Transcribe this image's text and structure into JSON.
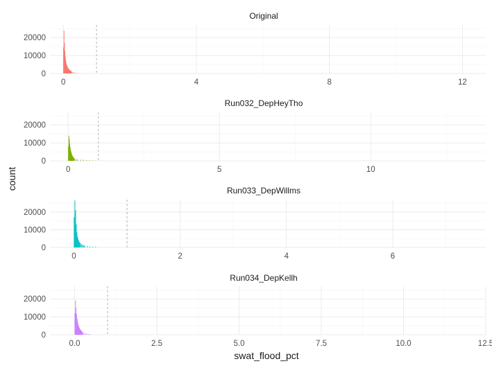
{
  "chart_data": {
    "type": "bar",
    "xlabel": "swat_flood_pct",
    "ylabel": "count",
    "grid": true,
    "legend": "none",
    "facets": [
      {
        "title": "Original",
        "color": "#F8766D",
        "xlim": [
          -0.4,
          12.7
        ],
        "x_major": [
          0,
          4,
          8,
          12
        ],
        "x_major_labels": [
          "0",
          "4",
          "8",
          "12"
        ],
        "x_minor": [
          2,
          6,
          10
        ],
        "ylim": [
          0,
          27000
        ],
        "y_ticks": [
          0,
          10000,
          20000
        ],
        "y_tick_labels": [
          "0",
          "10000",
          "20000"
        ],
        "vline": 1,
        "bins": {
          "x": [
            0.0,
            0.013,
            0.026,
            0.039,
            0.052,
            0.065,
            0.078,
            0.091,
            0.104,
            0.117,
            0.13,
            0.143,
            0.156,
            0.169,
            0.182,
            0.195,
            0.208,
            0.221,
            0.234,
            0.26,
            0.3,
            0.35,
            0.4,
            0.45
          ],
          "counts": [
            14500,
            23800,
            17000,
            12500,
            9500,
            7500,
            6000,
            5000,
            4300,
            3700,
            3200,
            2800,
            2500,
            2200,
            2000,
            1800,
            1600,
            1400,
            1200,
            900,
            700,
            500,
            300,
            150
          ],
          "width": 0.013
        }
      },
      {
        "title": "Run032_DepHeyTho",
        "color": "#7CAE00",
        "xlim": [
          -0.6,
          13.8
        ],
        "x_major": [
          0,
          5,
          10
        ],
        "x_major_labels": [
          "0",
          "5",
          "10"
        ],
        "x_minor": [
          2.5,
          7.5,
          12.5
        ],
        "ylim": [
          0,
          27000
        ],
        "y_ticks": [
          0,
          10000,
          20000
        ],
        "y_tick_labels": [
          "0",
          "10000",
          "20000"
        ],
        "vline": 1,
        "bins": {
          "x": [
            0.0,
            0.015,
            0.03,
            0.045,
            0.06,
            0.075,
            0.09,
            0.105,
            0.12,
            0.135,
            0.15,
            0.165,
            0.18,
            0.2,
            0.25,
            0.3,
            0.4,
            0.5,
            0.6,
            0.7,
            0.8,
            0.9
          ],
          "counts": [
            8000,
            14000,
            12000,
            9500,
            7500,
            6000,
            5000,
            4000,
            3300,
            2700,
            2300,
            1900,
            1600,
            1300,
            1000,
            800,
            650,
            550,
            450,
            350,
            250,
            150
          ],
          "width": 0.015
        }
      },
      {
        "title": "Run033_DepWillms",
        "color": "#00BFC4",
        "xlim": [
          -0.45,
          7.75
        ],
        "x_major": [
          0,
          2,
          4,
          6
        ],
        "x_major_labels": [
          "0",
          "2",
          "4",
          "6"
        ],
        "x_minor": [
          1,
          3,
          5,
          7
        ],
        "ylim": [
          0,
          27000
        ],
        "y_ticks": [
          0,
          10000,
          20000
        ],
        "y_tick_labels": [
          "0",
          "10000",
          "20000"
        ],
        "vline": 1,
        "bins": {
          "x": [
            0.0,
            0.013,
            0.026,
            0.039,
            0.052,
            0.065,
            0.078,
            0.091,
            0.104,
            0.12,
            0.14,
            0.16,
            0.18,
            0.2,
            0.25,
            0.3,
            0.35,
            0.4,
            0.45
          ],
          "counts": [
            17000,
            26500,
            21000,
            13000,
            8500,
            6000,
            4500,
            3500,
            2800,
            2200,
            1800,
            1500,
            1200,
            1000,
            800,
            600,
            450,
            300,
            150
          ],
          "width": 0.013
        }
      },
      {
        "title": "Run034_DepKellh",
        "color": "#C77CFF",
        "xlim": [
          -0.75,
          12.5
        ],
        "x_major": [
          0,
          2.5,
          5,
          7.5,
          10,
          12.5
        ],
        "x_major_labels": [
          "0.0",
          "2.5",
          "5.0",
          "7.5",
          "10.0",
          "12.5"
        ],
        "x_minor": [
          1.25,
          3.75,
          6.25,
          8.75,
          11.25
        ],
        "ylim": [
          0,
          27000
        ],
        "y_ticks": [
          0,
          10000,
          20000
        ],
        "y_tick_labels": [
          "0",
          "10000",
          "20000"
        ],
        "vline": 1,
        "bins": {
          "x": [
            0.0,
            0.017,
            0.034,
            0.051,
            0.068,
            0.085,
            0.102,
            0.119,
            0.136,
            0.153,
            0.17,
            0.187,
            0.204,
            0.221,
            0.25,
            0.3,
            0.35,
            0.4,
            0.45,
            0.5
          ],
          "counts": [
            12000,
            19000,
            15000,
            11500,
            9000,
            7200,
            5800,
            4800,
            4000,
            3300,
            2800,
            2400,
            2000,
            1700,
            1400,
            1000,
            700,
            500,
            300,
            150
          ],
          "width": 0.017
        }
      }
    ]
  }
}
